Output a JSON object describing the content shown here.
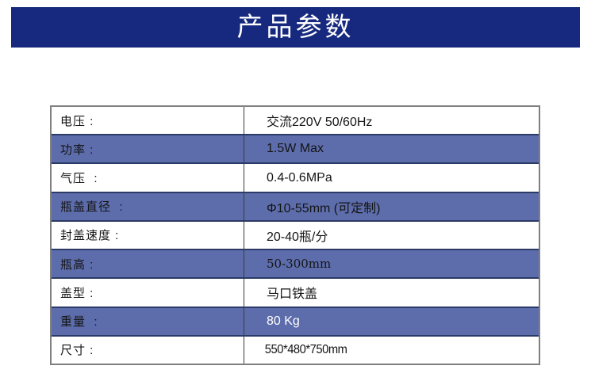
{
  "page": {
    "title": "产品参数"
  },
  "colors": {
    "banner_bg": "#17297e",
    "banner_text": "#ffffff",
    "highlight_row_bg": "#5d6dab",
    "highlight_row_border": "#2b3a66",
    "table_border": "#7f7f7f",
    "row_separator": "#9a9a9a",
    "text": "#141414",
    "weight_value_text": "#ffffff"
  },
  "table": {
    "rows": [
      {
        "label": "电压 :",
        "value": "交流220V 50/60Hz",
        "highlight": false
      },
      {
        "label": "功率 :",
        "value": "1.5W Max",
        "highlight": true
      },
      {
        "label": "气压  :",
        "value": "0.4-0.6MPa",
        "highlight": false
      },
      {
        "label": "瓶盖直径  :",
        "value": "Φ10-55mm (可定制)",
        "highlight": true
      },
      {
        "label": "封盖速度 :",
        "value": "20-40瓶/分",
        "highlight": false
      },
      {
        "label": "瓶高 :",
        "value": "50-300mm",
        "highlight": true
      },
      {
        "label": "盖型 :",
        "value": "马口铁盖",
        "highlight": false
      },
      {
        "label": "重量  :",
        "value": "80 Kg",
        "highlight": true
      },
      {
        "label": "尺寸 :",
        "value": "550*480*750mm",
        "highlight": false
      }
    ]
  }
}
